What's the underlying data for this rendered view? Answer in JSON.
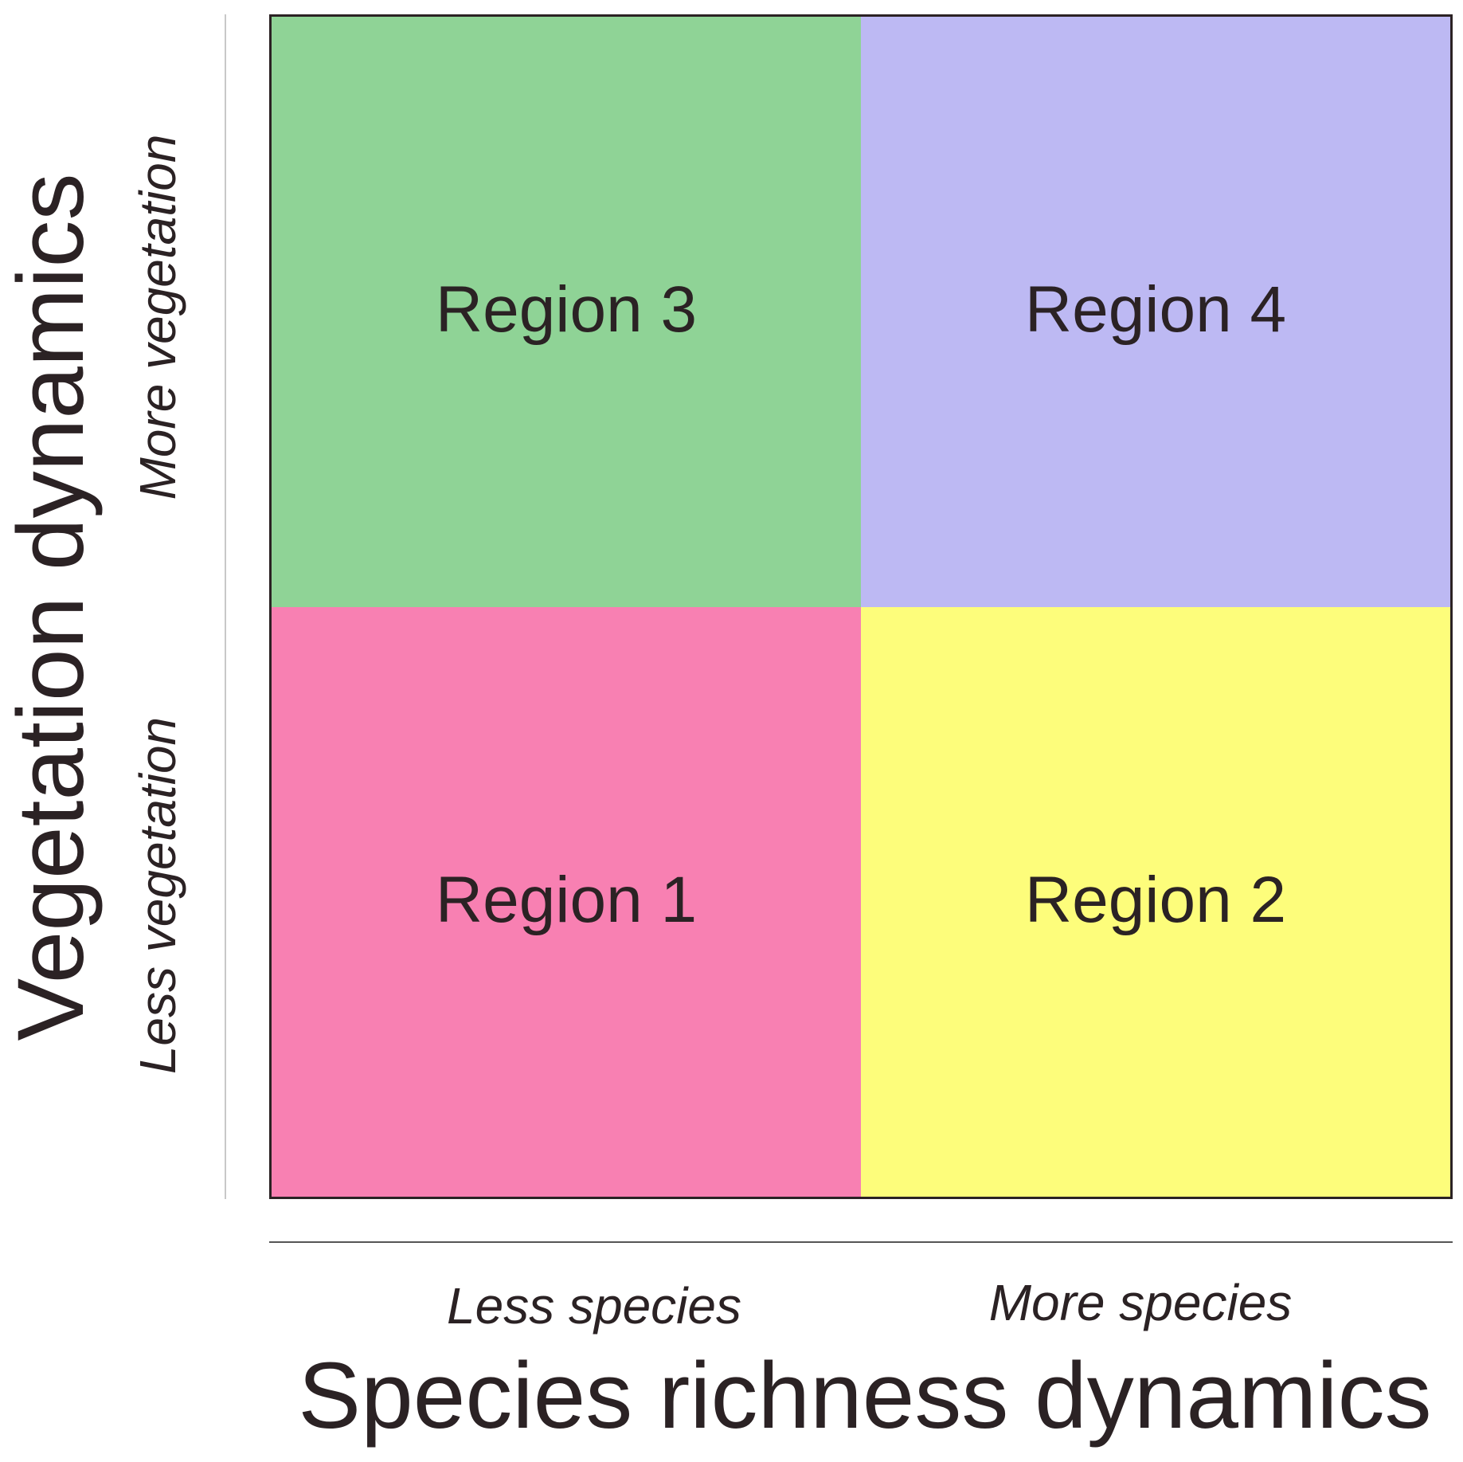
{
  "y_axis": {
    "title": "Vegetation dynamics",
    "high_label": "More vegetation",
    "low_label": "Less vegetation"
  },
  "x_axis": {
    "title": "Species richness dynamics",
    "low_label": "Less species",
    "high_label": "More species"
  },
  "quadrants": {
    "top_left": {
      "label": "Region 3",
      "color": "#8fd396"
    },
    "top_right": {
      "label": "Region 4",
      "color": "#bdb9f3"
    },
    "bottom_left": {
      "label": "Region 1",
      "color": "#f880b2"
    },
    "bottom_right": {
      "label": "Region 2",
      "color": "#fdfd7b"
    }
  },
  "colors": {
    "border": "#2b2224",
    "text": "#2b2224"
  }
}
